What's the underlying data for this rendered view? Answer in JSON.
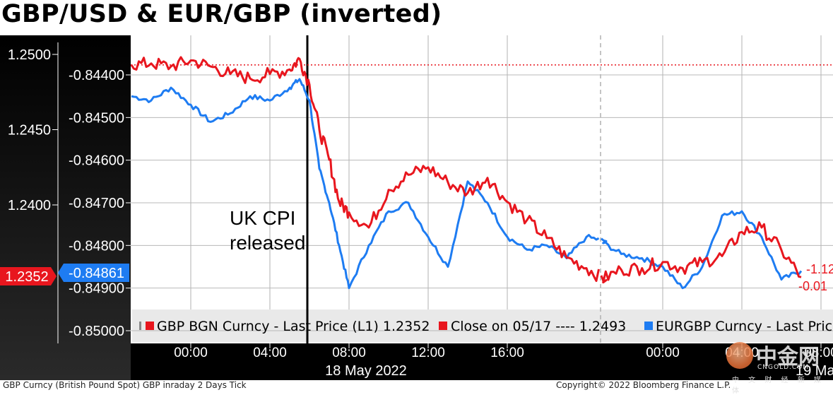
{
  "title": "GBP/USD & EUR/GBP (inverted)",
  "annotation": "UK CPI released",
  "legend": {
    "gbp": "GBP BGN Curncy - Last Price (L1) 1.2352",
    "close": "Close on 05/17 ---- 1.2493",
    "eur": "EURGBP Curncy - Last Price"
  },
  "x_date_labels": [
    "18 May 2022",
    "19 Ma"
  ],
  "footer": {
    "left": "GBP Curncy (British Pound Spot) GBP inraday 2 Days  Tick",
    "right": "Copyright© 2022 Bloomberg Finance L.P."
  },
  "watermark": {
    "text": "中金网",
    "sub": "CNGOLD.COM",
    "sub2": "中 文 财 经 新 媒 体"
  },
  "colors": {
    "gbp": "#e8161e",
    "eur": "#1e7cf2",
    "close_line": "#e8161e",
    "axis_bg": "#000000"
  },
  "chart_data": {
    "type": "line",
    "title": "GBP/USD & EUR/GBP (inverted)",
    "x_tick_labels": [
      "00:00",
      "04:00",
      "08:00",
      "12:00",
      "16:00",
      "00:00",
      "04:00",
      "08:00"
    ],
    "x_time": [
      "2022-05-18 00:00",
      "2022-05-18 04:00",
      "2022-05-18 08:00",
      "2022-05-18 12:00",
      "2022-05-18 16:00",
      "2022-05-19 00:00",
      "2022-05-19 04:00",
      "2022-05-19 08:00"
    ],
    "left_axis": {
      "label": "GBP/USD",
      "ticks": [
        "1.2500",
        "1.2450",
        "1.2400"
      ],
      "range": [
        1.2335,
        1.251
      ],
      "current": "1.2352"
    },
    "right_axis": {
      "label": "EUR/GBP (inverted)",
      "ticks": [
        "-0.84400",
        "-0.84500",
        "-0.84600",
        "-0.84700",
        "-0.84800",
        "-0.84900",
        "-0.85000"
      ],
      "range": [
        -0.85,
        -0.843
      ],
      "current": "-0.84861"
    },
    "reference_line": {
      "name": "Close on 05/17",
      "value": 1.2493
    },
    "end_labels": {
      "gbp": "-1.12",
      "eur": "-0.01"
    },
    "series": [
      {
        "name": "GBP BGN Curncy - Last Price",
        "axis": "left",
        "x": [
          "05-17 21:00",
          "05-17 22:00",
          "05-17 23:00",
          "05-18 00:00",
          "05-18 01:00",
          "05-18 02:00",
          "05-18 03:00",
          "05-18 04:00",
          "05-18 05:00",
          "05-18 05:30",
          "05-18 06:00",
          "05-18 06:30",
          "05-18 07:00",
          "05-18 07:30",
          "05-18 08:00",
          "05-18 09:00",
          "05-18 10:00",
          "05-18 11:00",
          "05-18 12:00",
          "05-18 13:00",
          "05-18 14:00",
          "05-18 15:00",
          "05-18 16:00",
          "05-18 17:00",
          "05-18 18:00",
          "05-18 19:00",
          "05-18 20:00",
          "05-18 21:00",
          "05-18 22:00",
          "05-18 23:00",
          "05-19 00:00",
          "05-19 01:00",
          "05-19 02:00",
          "05-19 03:00",
          "05-19 04:00",
          "05-19 05:00",
          "05-19 06:00",
          "05-19 07:00"
        ],
        "values": [
          1.2493,
          1.2494,
          1.2492,
          1.2496,
          1.2492,
          1.2487,
          1.2484,
          1.2487,
          1.249,
          1.2497,
          1.248,
          1.245,
          1.243,
          1.2402,
          1.2395,
          1.2385,
          1.241,
          1.242,
          1.2425,
          1.2415,
          1.2408,
          1.2418,
          1.2402,
          1.239,
          1.2378,
          1.2365,
          1.2358,
          1.235,
          1.2357,
          1.2358,
          1.2362,
          1.2358,
          1.2362,
          1.2366,
          1.2382,
          1.2385,
          1.237,
          1.2352
        ]
      },
      {
        "name": "EURGBP Curncy - Last Price",
        "axis": "right",
        "x": [
          "05-17 21:00",
          "05-17 22:00",
          "05-17 23:00",
          "05-18 00:00",
          "05-18 01:00",
          "05-18 02:00",
          "05-18 03:00",
          "05-18 04:00",
          "05-18 05:00",
          "05-18 05:30",
          "05-18 06:00",
          "05-18 06:30",
          "05-18 07:00",
          "05-18 07:30",
          "05-18 08:00",
          "05-18 09:00",
          "05-18 10:00",
          "05-18 11:00",
          "05-18 12:00",
          "05-18 13:00",
          "05-18 14:00",
          "05-18 15:00",
          "05-18 16:00",
          "05-18 17:00",
          "05-18 18:00",
          "05-18 19:00",
          "05-18 20:00",
          "05-18 21:00",
          "05-18 22:00",
          "05-18 23:00",
          "05-19 00:00",
          "05-19 01:00",
          "05-19 02:00",
          "05-19 03:00",
          "05-19 04:00",
          "05-19 05:00",
          "05-19 06:00",
          "05-19 07:00"
        ],
        "values": [
          -0.8445,
          -0.8446,
          -0.8443,
          -0.8447,
          -0.8451,
          -0.8449,
          -0.8445,
          -0.8446,
          -0.8443,
          -0.8441,
          -0.8446,
          -0.8462,
          -0.847,
          -0.848,
          -0.849,
          -0.848,
          -0.8472,
          -0.847,
          -0.8478,
          -0.8485,
          -0.8465,
          -0.847,
          -0.8478,
          -0.8481,
          -0.848,
          -0.8483,
          -0.8478,
          -0.8479,
          -0.8482,
          -0.8483,
          -0.8485,
          -0.849,
          -0.8485,
          -0.8473,
          -0.8472,
          -0.8478,
          -0.8488,
          -0.8486
        ]
      }
    ]
  }
}
